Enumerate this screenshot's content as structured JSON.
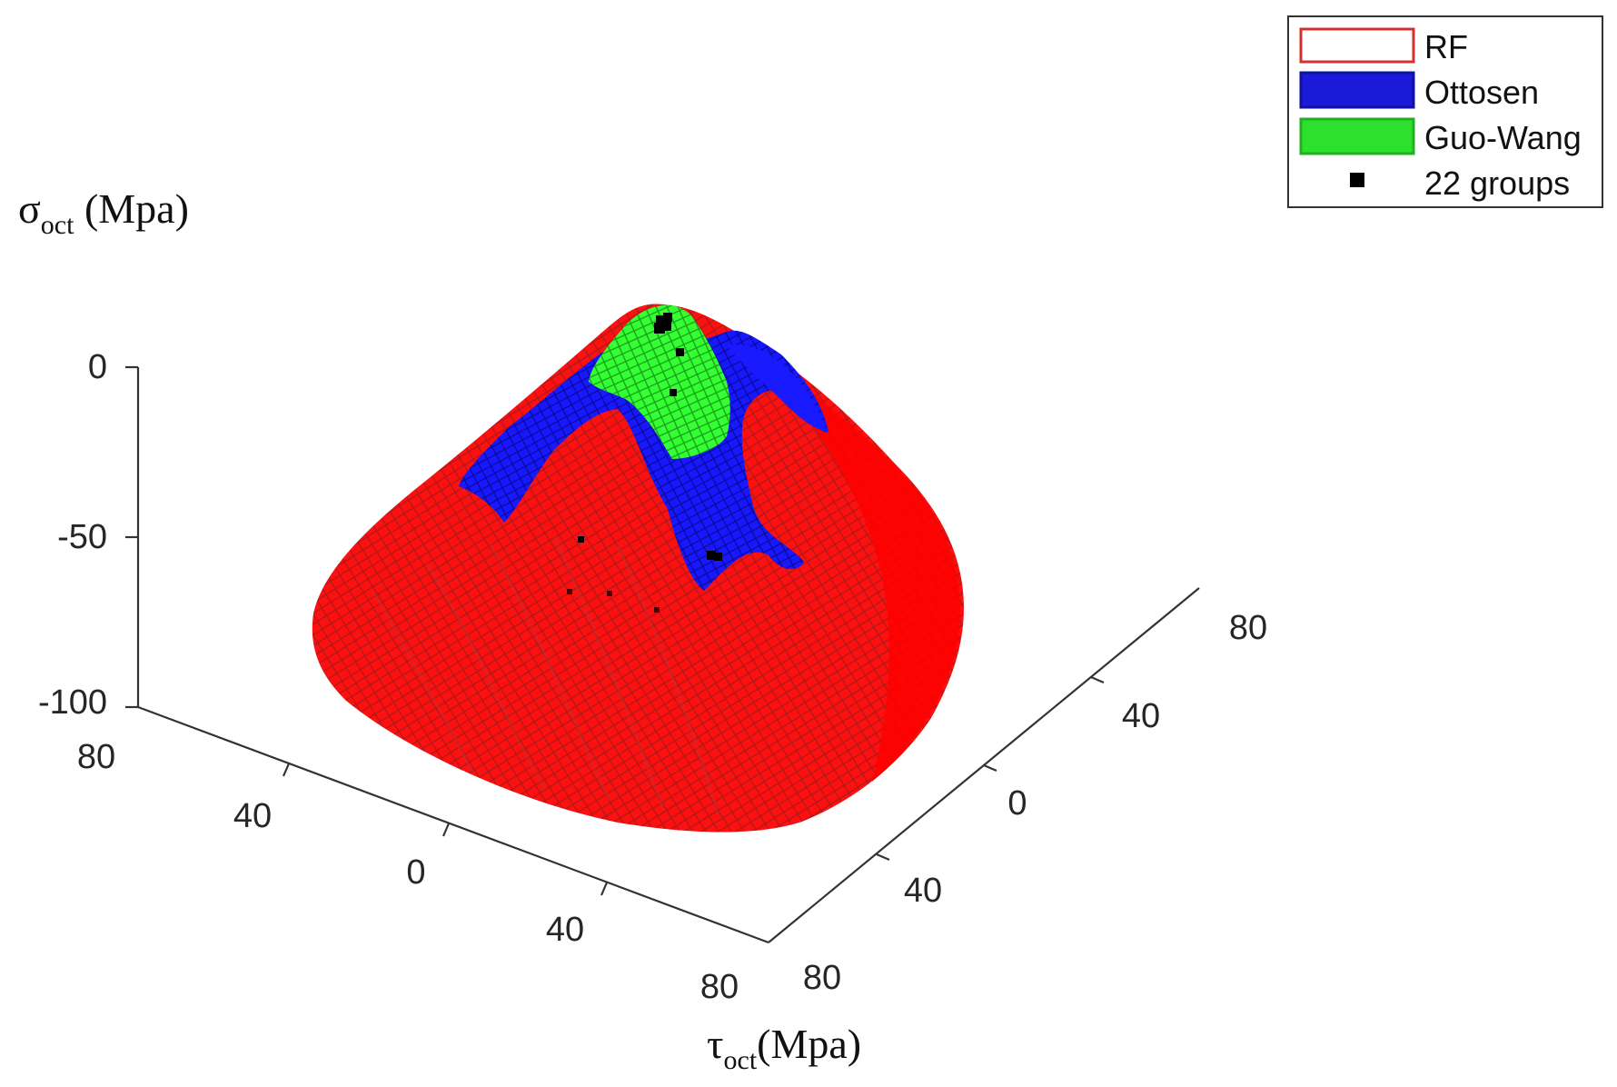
{
  "chart_data": {
    "type": "surface3d",
    "xlabel": {
      "main": "τ",
      "sub": "oct",
      "unit": "(Mpa)"
    },
    "zlabel": {
      "main": "σ",
      "sub": "oct",
      "unit": " (Mpa)"
    },
    "z_ticks": [
      "0",
      "-50",
      "-100"
    ],
    "zlim": [
      -100,
      0
    ],
    "x_ticks": [
      "80",
      "40",
      "0",
      "40",
      "80"
    ],
    "y_ticks": [
      "80",
      "40",
      "0",
      "40",
      "80"
    ],
    "grid": false,
    "legend_position": "top-right",
    "legend": [
      {
        "name": "RF",
        "type": "surface",
        "color": "#e03030"
      },
      {
        "name": "Ottosen",
        "type": "surface",
        "color": "#1f1fcc"
      },
      {
        "name": "Guo-Wang",
        "type": "surface",
        "color": "#2ee02e"
      },
      {
        "name": "22 groups",
        "type": "marker",
        "color": "#000000"
      }
    ],
    "surface_colors": {
      "RF": "#ff0000",
      "Ottosen": "#1a1aff",
      "Guo-Wang": "#22ff22",
      "mesh_line": "#a01010"
    },
    "marker_count": 22
  }
}
